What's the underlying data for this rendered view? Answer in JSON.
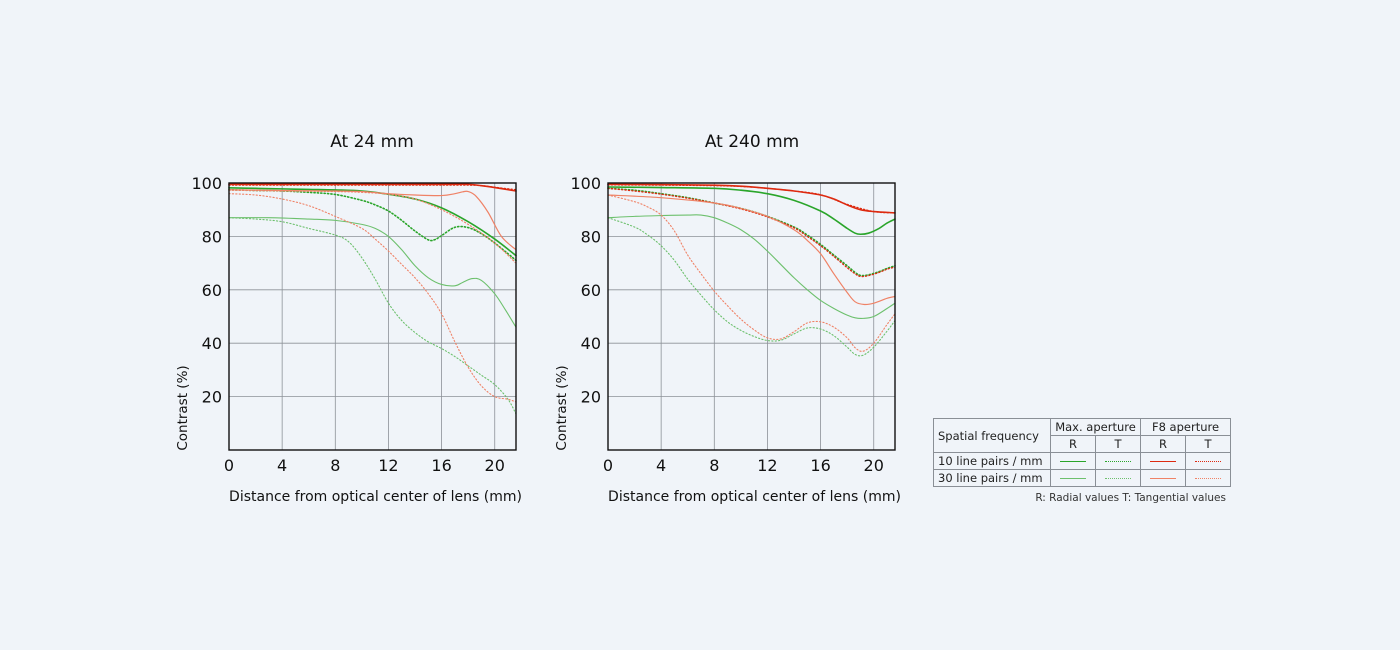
{
  "colors": {
    "max_10": "#2aa52a",
    "max_30": "#6dc06d",
    "f8_10": "#dd2a10",
    "f8_30": "#ef8266",
    "grid": "#8c9198",
    "background": "#f0f4f9"
  },
  "chart_data": [
    {
      "type": "line",
      "title": "At 24 mm",
      "xlabel": "Distance from optical center of lens (mm)",
      "ylabel": "Contrast (%)",
      "xlim": [
        0,
        21.6
      ],
      "ylim": [
        0,
        100
      ],
      "xticks": [
        "0",
        "4",
        "8",
        "12",
        "16",
        "20"
      ],
      "yticks": [
        "100",
        "80",
        "60",
        "40",
        "20"
      ],
      "grid": true,
      "series": [
        {
          "name": "F8 aperture 10 line pairs / mm R",
          "color": "f8_10",
          "dash": false,
          "width": 1.6,
          "x": [
            0,
            4,
            8,
            12,
            14,
            16,
            18,
            19,
            20,
            21.6
          ],
          "y": [
            99.5,
            99.5,
            99.5,
            99.5,
            99.5,
            99.5,
            99.5,
            99,
            98.3,
            97
          ]
        },
        {
          "name": "F8 aperture 10 line pairs / mm T",
          "color": "f8_10",
          "dash": true,
          "width": 1.3,
          "x": [
            0,
            4,
            8,
            12,
            14,
            16,
            18,
            19,
            20,
            21.6
          ],
          "y": [
            99.2,
            99.2,
            99.2,
            99.2,
            99.2,
            99.2,
            99.2,
            99,
            98.4,
            97.5
          ]
        },
        {
          "name": "Max. aperture 10 line pairs / mm R",
          "color": "max_10",
          "dash": false,
          "width": 1.6,
          "x": [
            0,
            2,
            4,
            6,
            8,
            10,
            12,
            14,
            16,
            18,
            20,
            21.6
          ],
          "y": [
            98.2,
            98,
            97.8,
            97.6,
            97.4,
            97,
            95.8,
            94,
            90.7,
            85.5,
            79,
            72.8
          ]
        },
        {
          "name": "Max. aperture 10 line pairs / mm T",
          "color": "max_10",
          "dash": true,
          "width": 1.6,
          "x": [
            0,
            2,
            4,
            6,
            8,
            10,
            11,
            12,
            13,
            14,
            15,
            15.5,
            16,
            17,
            18,
            19,
            20,
            21,
            21.6
          ],
          "y": [
            97.5,
            97.2,
            97,
            96.5,
            95.7,
            93.5,
            91.8,
            89.5,
            86,
            82,
            78.7,
            78.8,
            80.3,
            83.4,
            83.3,
            81,
            77.5,
            73.5,
            71
          ]
        },
        {
          "name": "F8 aperture 30 line pairs / mm R",
          "color": "f8_30",
          "dash": false,
          "width": 1.2,
          "x": [
            0,
            4,
            8,
            10,
            12,
            14,
            16,
            17,
            17.6,
            18,
            18.6,
            19.5,
            20.5,
            21.6
          ],
          "y": [
            97.5,
            97.2,
            97,
            96.8,
            96,
            95.5,
            95.3,
            96,
            96.7,
            96.8,
            95,
            89,
            80,
            75
          ]
        },
        {
          "name": "F8 aperture 30 line pairs / mm T",
          "color": "f8_30",
          "dash": true,
          "width": 1.2,
          "x": [
            0,
            4,
            8,
            10,
            12,
            14,
            16,
            18,
            20,
            21.6
          ],
          "y": [
            97.3,
            97,
            96.8,
            96.5,
            95.8,
            94,
            90,
            84.5,
            77.5,
            70
          ]
        },
        {
          "name": "Max. aperture 30 line pairs / mm R",
          "color": "max_30",
          "dash": false,
          "width": 1.1,
          "x": [
            0,
            3,
            6,
            8,
            10,
            11,
            12,
            13,
            14,
            15,
            16,
            17,
            17.6,
            18.3,
            19,
            20,
            20.8,
            21.6
          ],
          "y": [
            87,
            87,
            86.5,
            86,
            84.5,
            83,
            80,
            75,
            69,
            64.5,
            62,
            61.5,
            62.8,
            64.2,
            63.5,
            58.5,
            52.5,
            46
          ]
        },
        {
          "name": "Max. aperture 30 line pairs / mm T",
          "color": "max_30",
          "dash": true,
          "width": 1.1,
          "x": [
            0,
            2,
            4,
            6,
            8,
            9,
            10,
            11,
            12,
            13,
            14,
            15,
            16,
            17,
            18,
            19,
            20,
            21,
            21.6
          ],
          "y": [
            87,
            86.5,
            85.5,
            83,
            80.5,
            78,
            72,
            64,
            55,
            48.5,
            44,
            40.5,
            38,
            35,
            31.5,
            28,
            24.5,
            19,
            13.5
          ]
        },
        {
          "name": "F8 aperture 30 line pairs / mm T (second)",
          "color": "f8_30",
          "dash": true,
          "width": 1.1,
          "x": [
            0,
            2,
            4,
            6,
            8,
            10,
            11,
            12,
            13,
            14,
            15,
            16,
            17,
            18,
            19,
            20,
            21,
            21.6
          ],
          "y": [
            96,
            95.5,
            94,
            91.5,
            87.5,
            83,
            79,
            74.5,
            69.5,
            64.5,
            58.5,
            51,
            40.5,
            31,
            24,
            20,
            19,
            18
          ]
        }
      ]
    },
    {
      "type": "line",
      "title": "At 240 mm",
      "xlabel": "Distance from optical center of lens (mm)",
      "ylabel": "Contrast (%)",
      "xlim": [
        0,
        21.6
      ],
      "ylim": [
        0,
        100
      ],
      "xticks": [
        "0",
        "4",
        "8",
        "12",
        "16",
        "20"
      ],
      "yticks": [
        "100",
        "80",
        "60",
        "40",
        "20"
      ],
      "grid": true,
      "series": [
        {
          "name": "F8 aperture 10 line pairs / mm R",
          "color": "f8_10",
          "dash": false,
          "width": 1.6,
          "x": [
            0,
            4,
            8,
            10,
            12,
            14,
            16,
            17,
            18,
            19,
            20,
            21,
            21.6
          ],
          "y": [
            99.5,
            99.4,
            99.2,
            98.8,
            98,
            97,
            95.5,
            94,
            91.8,
            90,
            89.3,
            89,
            88.8
          ]
        },
        {
          "name": "F8 aperture 10 line pairs / mm T",
          "color": "f8_10",
          "dash": true,
          "width": 1.3,
          "x": [
            0,
            4,
            8,
            10,
            12,
            14,
            16,
            18,
            20,
            21.6
          ],
          "y": [
            99.3,
            99.2,
            99,
            98.7,
            98,
            97,
            95.6,
            92,
            89.3,
            88.8
          ]
        },
        {
          "name": "Max. aperture 10 line pairs / mm R",
          "color": "max_10",
          "dash": false,
          "width": 1.6,
          "x": [
            0,
            4,
            8,
            10,
            12,
            14,
            16,
            17,
            18,
            18.6,
            19,
            19.6,
            20.4,
            21,
            21.6
          ],
          "y": [
            98.5,
            98.3,
            98,
            97.3,
            96,
            93.5,
            89.5,
            86.5,
            83,
            81.2,
            80.8,
            81.2,
            83,
            85,
            86.5
          ]
        },
        {
          "name": "Max. aperture 10 line pairs / mm T",
          "color": "max_10",
          "dash": true,
          "width": 1.6,
          "x": [
            0,
            2,
            4,
            6,
            8,
            10,
            12,
            14,
            15,
            16,
            17,
            18,
            18.6,
            19,
            19.6,
            20.4,
            21,
            21.6
          ],
          "y": [
            98,
            97.3,
            96,
            94.5,
            92.5,
            90.5,
            87.5,
            83.5,
            80.5,
            77,
            73,
            69,
            66.5,
            65.4,
            65.6,
            66.8,
            68,
            69
          ]
        },
        {
          "name": "F8 aperture 10 line pairs / mm T (second)",
          "color": "f8_10",
          "dash": true,
          "width": 1.3,
          "x": [
            0,
            2,
            4,
            6,
            8,
            10,
            12,
            14,
            15,
            16,
            17,
            18,
            18.6,
            19,
            19.6,
            20.4,
            21,
            21.6
          ],
          "y": [
            98,
            97,
            95.8,
            94.3,
            92.5,
            90.3,
            87.3,
            83.2,
            80,
            76.5,
            72.5,
            68.3,
            66,
            65,
            65.3,
            66.5,
            67.7,
            68.5
          ]
        },
        {
          "name": "F8 aperture 30 line pairs / mm R",
          "color": "f8_30",
          "dash": false,
          "width": 1.2,
          "x": [
            0,
            4,
            8,
            10,
            12,
            14,
            15,
            16,
            17,
            18,
            18.6,
            19.3,
            20,
            21,
            21.6
          ],
          "y": [
            95.5,
            94.5,
            92.5,
            90.5,
            87.5,
            82.5,
            78.5,
            73.5,
            66,
            59,
            55.5,
            54.5,
            55,
            56.8,
            57.5
          ]
        },
        {
          "name": "Max. aperture 30 line pairs / mm R",
          "color": "max_30",
          "dash": false,
          "width": 1.1,
          "x": [
            0,
            2,
            4,
            6,
            7,
            8,
            9,
            10,
            11,
            12,
            13,
            14,
            15,
            16,
            17,
            18,
            18.6,
            19.2,
            20,
            21,
            21.6
          ],
          "y": [
            87,
            87.5,
            87.8,
            88,
            88,
            87,
            85,
            82.5,
            79,
            74.5,
            69.5,
            64.5,
            60,
            56,
            53,
            50.5,
            49.5,
            49.3,
            50,
            53,
            55
          ]
        },
        {
          "name": "F8 aperture 30 line pairs / mm T",
          "color": "f8_30",
          "dash": true,
          "width": 1.1,
          "x": [
            0,
            2,
            3,
            4,
            5,
            6,
            7,
            8,
            9,
            10,
            11,
            12,
            13,
            14,
            15,
            16,
            17,
            18,
            18.6,
            19.2,
            20,
            21,
            21.6
          ],
          "y": [
            95.5,
            93,
            91,
            88,
            82,
            73,
            66,
            59.5,
            54,
            49,
            45,
            42,
            41.6,
            44.3,
            47.6,
            48,
            46,
            42,
            38.3,
            37,
            40,
            47,
            51
          ]
        },
        {
          "name": "Max. aperture 30 line pairs / mm T",
          "color": "max_30",
          "dash": true,
          "width": 1.1,
          "x": [
            0,
            2,
            3,
            4,
            5,
            6,
            7,
            8,
            9,
            10,
            11,
            12,
            13,
            14,
            15,
            16,
            17,
            18,
            18.6,
            19.2,
            20,
            21,
            21.6
          ],
          "y": [
            87,
            83.5,
            80.5,
            76.5,
            71,
            64,
            58,
            52.5,
            48,
            44.8,
            42.5,
            41,
            41.1,
            43.5,
            45.7,
            45.3,
            42.8,
            38.5,
            35.8,
            35.5,
            38.5,
            44.5,
            48.5
          ]
        }
      ]
    }
  ],
  "legend": {
    "header_label": "Spatial frequency",
    "group_max": "Max. aperture",
    "group_f8": "F8 aperture",
    "r": "R",
    "t": "T",
    "row1": "10 line pairs / mm",
    "row2": "30 line pairs / mm",
    "note": "R: Radial values  T: Tangential values"
  }
}
